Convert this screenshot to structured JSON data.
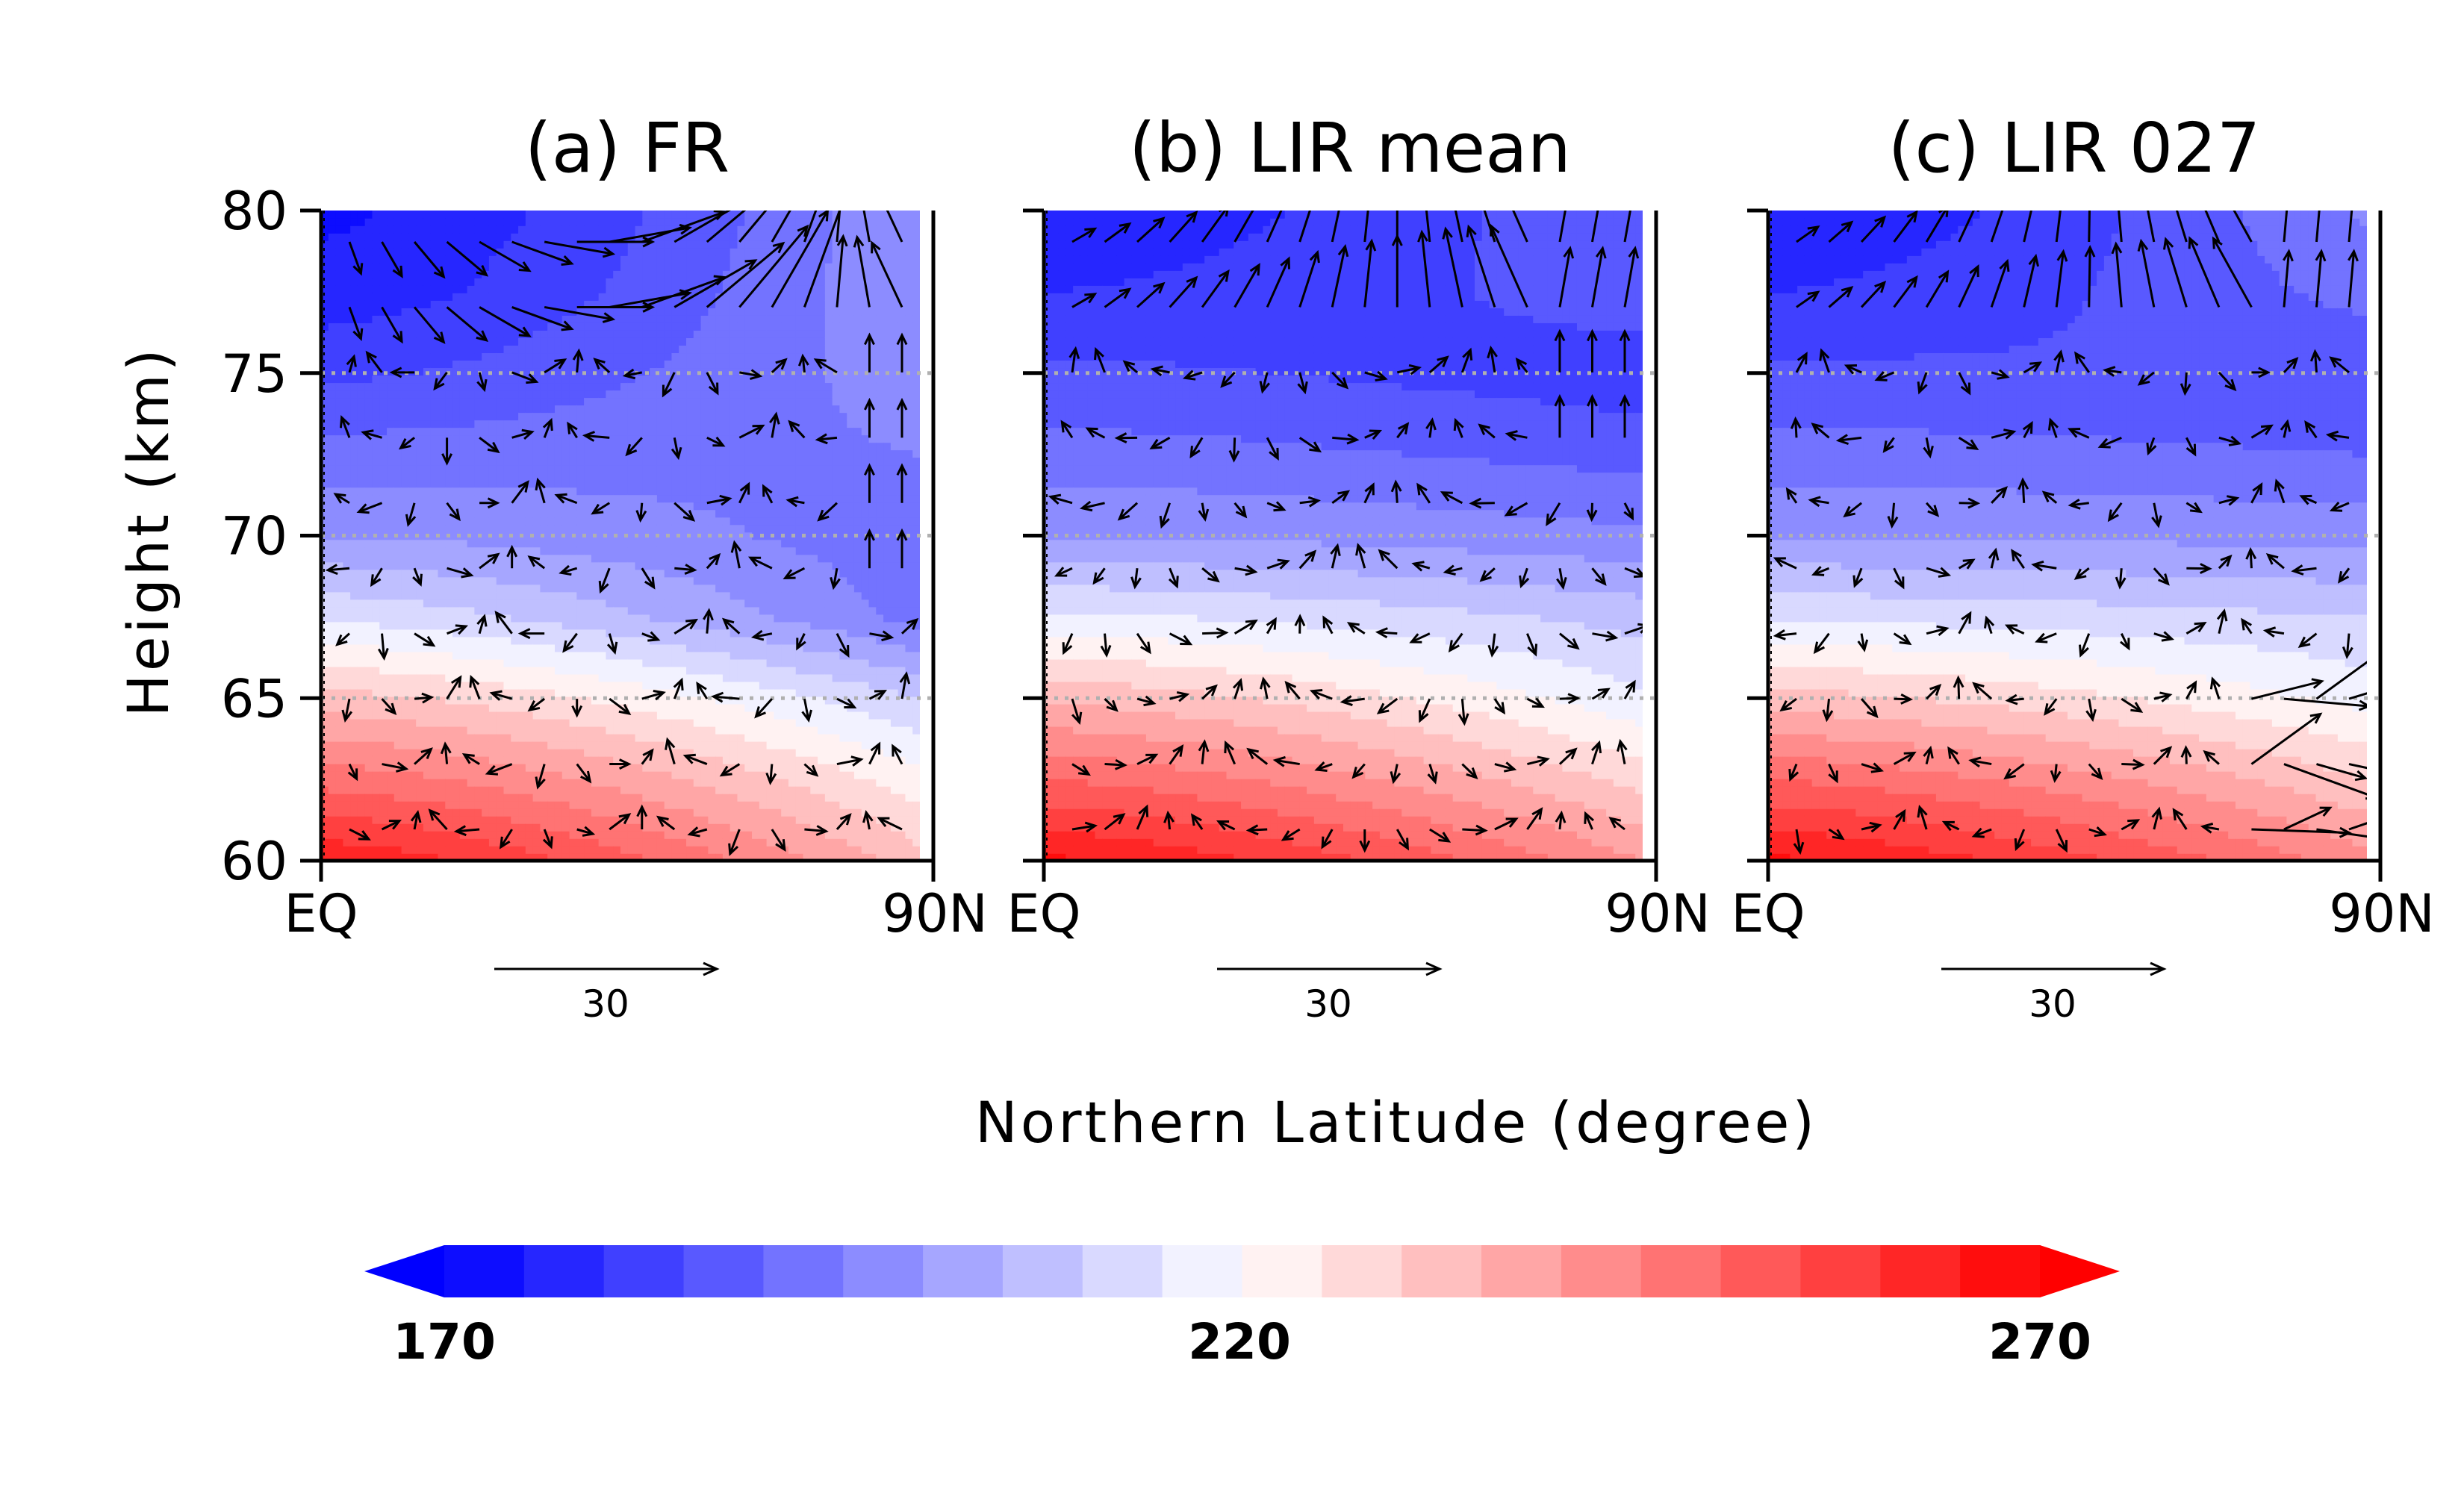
{
  "chart_data": [
    {
      "type": "heatmap",
      "title": "(a) FR",
      "ylabel": "Height (km)",
      "xlabel": "Northern Latitude (degree)",
      "xlim": [
        0,
        90
      ],
      "ylim": [
        60,
        80
      ],
      "xticks": [
        "EQ",
        "90N"
      ],
      "yticks": [
        "60",
        "65",
        "70",
        "75",
        "80"
      ],
      "reference_vector": "30",
      "grid": "dotted at 65, 70, 75 km",
      "temperature_profile": [
        {
          "height": 80,
          "eq": 174,
          "pole": 200
        },
        {
          "height": 77.5,
          "eq": 177,
          "pole": 200
        },
        {
          "height": 75,
          "eq": 184,
          "pole": 198
        },
        {
          "height": 72.5,
          "eq": 192,
          "pole": 195
        },
        {
          "height": 70,
          "eq": 200,
          "pole": 192
        },
        {
          "height": 67.5,
          "eq": 214,
          "pole": 193
        },
        {
          "height": 65,
          "eq": 232,
          "pole": 210
        },
        {
          "height": 62.5,
          "eq": 248,
          "pole": 222
        },
        {
          "height": 60,
          "eq": 264,
          "pole": 232
        }
      ]
    },
    {
      "type": "heatmap",
      "title": "(b) LIR mean",
      "xlim": [
        0,
        90
      ],
      "ylim": [
        60,
        80
      ],
      "xticks": [
        "EQ",
        "90N"
      ],
      "reference_vector": "30",
      "grid": "dotted at 65, 70, 75 km",
      "temperature_profile": [
        {
          "height": 80,
          "eq": 176,
          "pole": 190
        },
        {
          "height": 77.5,
          "eq": 180,
          "pole": 188
        },
        {
          "height": 75,
          "eq": 186,
          "pole": 182
        },
        {
          "height": 72.5,
          "eq": 192,
          "pole": 188
        },
        {
          "height": 70,
          "eq": 200,
          "pole": 196
        },
        {
          "height": 67.5,
          "eq": 216,
          "pole": 208
        },
        {
          "height": 65,
          "eq": 234,
          "pole": 216
        },
        {
          "height": 62.5,
          "eq": 250,
          "pole": 228
        },
        {
          "height": 60,
          "eq": 266,
          "pole": 240
        }
      ]
    },
    {
      "type": "heatmap",
      "title": "(c) LIR 027",
      "xlim": [
        0,
        90
      ],
      "ylim": [
        60,
        80
      ],
      "xticks": [
        "EQ",
        "90N"
      ],
      "reference_vector": "30",
      "grid": "dotted at 65, 70, 75 km",
      "temperature_profile": [
        {
          "height": 80,
          "eq": 175,
          "pole": 196
        },
        {
          "height": 77.5,
          "eq": 180,
          "pole": 192
        },
        {
          "height": 75,
          "eq": 186,
          "pole": 185
        },
        {
          "height": 72.5,
          "eq": 192,
          "pole": 190
        },
        {
          "height": 70,
          "eq": 200,
          "pole": 198
        },
        {
          "height": 67.5,
          "eq": 214,
          "pole": 210
        },
        {
          "height": 65,
          "eq": 232,
          "pole": 218
        },
        {
          "height": 62.5,
          "eq": 250,
          "pole": 230
        },
        {
          "height": 60,
          "eq": 266,
          "pole": 242
        }
      ]
    }
  ],
  "figure": {
    "xlabel": "Northern Latitude (degree)",
    "ylabel": "Height (km)"
  },
  "colorbar": {
    "min": 170,
    "max": 270,
    "step": 5,
    "labels": [
      "170",
      "220",
      "270"
    ],
    "low_color": "#0000ff",
    "mid_color": "#ffffff",
    "high_color": "#ff0000"
  }
}
